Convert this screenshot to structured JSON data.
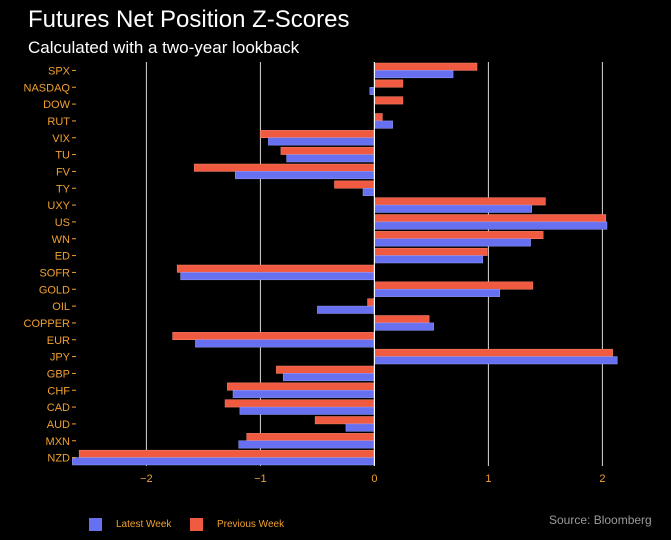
{
  "title": "Futures Net Position Z-Scores",
  "subtitle": "Calculated with a two-year lookback",
  "source": "Source: Bloomberg",
  "colors": {
    "background": "#000000",
    "latest": "#6670f0",
    "previous": "#f05a40",
    "labels": "#f0a030",
    "grid": "#d8d8d8"
  },
  "chart_data": {
    "type": "bar",
    "orientation": "horizontal",
    "categories": [
      "SPX",
      "NASDAQ",
      "DOW",
      "RUT",
      "VIX",
      "TU",
      "FV",
      "TY",
      "UXY",
      "US",
      "WN",
      "ED",
      "SOFR",
      "GOLD",
      "OIL",
      "COPPER",
      "EUR",
      "JPY",
      "GBP",
      "CHF",
      "CAD",
      "AUD",
      "MXN",
      "NZD"
    ],
    "series": [
      {
        "name": "Latest Week",
        "values": [
          0.69,
          -0.04,
          0.0,
          0.16,
          -0.93,
          -0.77,
          -1.22,
          -0.1,
          1.38,
          2.04,
          1.37,
          0.95,
          -1.7,
          1.1,
          -0.5,
          0.52,
          -1.57,
          2.13,
          -0.8,
          -1.24,
          -1.18,
          -0.25,
          -1.19,
          -2.65
        ]
      },
      {
        "name": "Previous Week",
        "values": [
          0.9,
          0.25,
          0.25,
          0.07,
          -1.0,
          -0.82,
          -1.58,
          -0.35,
          1.5,
          2.03,
          1.48,
          0.99,
          -1.73,
          1.39,
          -0.06,
          0.48,
          -1.77,
          2.09,
          -0.86,
          -1.29,
          -1.31,
          -0.52,
          -1.12,
          -2.59
        ]
      }
    ],
    "xlim": [
      -2.6,
      2.4
    ],
    "xticks": [
      "−2",
      "−1",
      "0",
      "1",
      "2"
    ],
    "xtick_values": [
      -2,
      -1,
      0,
      1,
      2
    ],
    "grid": true,
    "legend_position": "bottom-left"
  }
}
